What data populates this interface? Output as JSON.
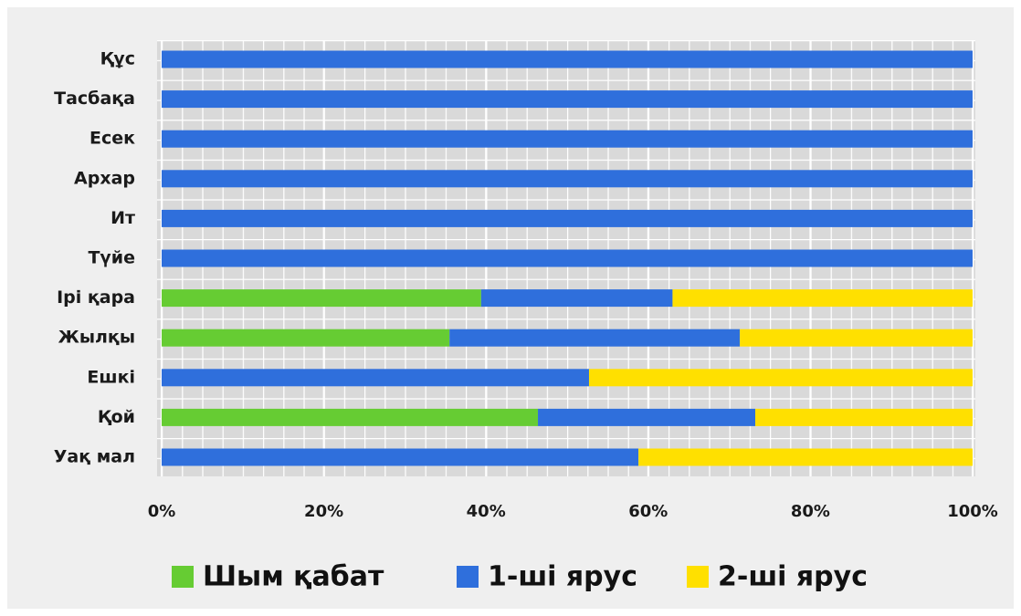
{
  "chart_data": {
    "type": "bar",
    "orientation": "horizontal",
    "stacked": true,
    "categories": [
      "Құс",
      "Тасбақа",
      "Есек",
      "Архар",
      "Ит",
      "Түйе",
      "Ірі қара",
      "Жылқы",
      "Ешкі",
      "Қой",
      "Уақ мал"
    ],
    "series": [
      {
        "name": "Шым қабат",
        "color": "#66cc33",
        "values": [
          0,
          0,
          0,
          0,
          0,
          0,
          39.4,
          35.5,
          0,
          46.4,
          0
        ]
      },
      {
        "name": "1-ші ярус",
        "color": "#2f6fdc",
        "values": [
          100,
          100,
          100,
          100,
          100,
          100,
          23.6,
          35.8,
          52.7,
          26.8,
          58.8
        ]
      },
      {
        "name": "2-ші ярус",
        "color": "#ffe000",
        "values": [
          0,
          0,
          0,
          0,
          0,
          0,
          37,
          28.7,
          47.3,
          26.8,
          41.2
        ]
      }
    ],
    "xlim": [
      0,
      100
    ],
    "xticks": [
      {
        "value": 0,
        "label": "0%"
      },
      {
        "value": 20,
        "label": "20%"
      },
      {
        "value": 40,
        "label": "40%"
      },
      {
        "value": 60,
        "label": "60%"
      },
      {
        "value": 80,
        "label": "80%"
      },
      {
        "value": 100,
        "label": "100%"
      }
    ],
    "grid": true,
    "legend": "bottom"
  }
}
